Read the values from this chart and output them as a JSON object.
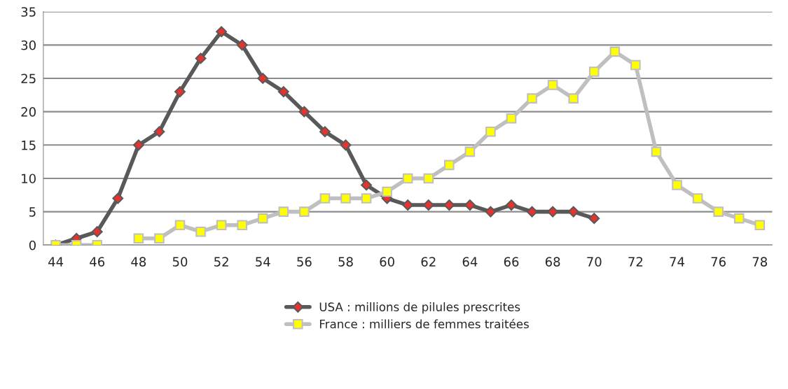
{
  "chart_data": {
    "type": "line",
    "categories": [
      "44",
      null,
      "46",
      null,
      "48",
      null,
      "50",
      null,
      "52",
      null,
      "54",
      null,
      "56",
      null,
      "58",
      null,
      "60",
      null,
      "62",
      null,
      "64",
      null,
      "66",
      null,
      "68",
      null,
      "70",
      null,
      "72",
      null,
      "74",
      null,
      "76",
      null,
      "78"
    ],
    "series": [
      {
        "name": "USA : millions de pilules prescrites",
        "color": "#595959",
        "colors": [
          "#e8322d",
          "#e8322d",
          "#e8322d",
          "#e8322d",
          "#e8322d",
          "#e8322d",
          "#e8322d",
          "#e8322d",
          "#e8322d",
          "#e8322d",
          "#e8322d",
          "#e8322d",
          "#e8322d",
          "#e8322d",
          "#e8322d",
          "#e8322d",
          "#e8322d",
          "#e8322d",
          "#e8322d",
          "#e8322d",
          "#e8322d",
          "#e8322d",
          "#e8322d",
          "#e8322d",
          "#e8322d",
          "#e8322d",
          "#e8322d",
          "#e8322d",
          "#e8322d",
          "#e8322d",
          "#e8322d",
          "#e8322d",
          "#e8322d",
          "#e8322d",
          "#e8322d"
        ],
        "marker": "diamond",
        "values": [
          0,
          1,
          2,
          7,
          15,
          17,
          23,
          28,
          32,
          30,
          25,
          23,
          20,
          17,
          15,
          9,
          7,
          6,
          6,
          6,
          6,
          5,
          6,
          5,
          5,
          5,
          4,
          null,
          null,
          null,
          null,
          null,
          null,
          null,
          null
        ]
      },
      {
        "name": "France : milliers de femmes traitées",
        "color": "#bfbfbf",
        "colors": [
          "#ffff00",
          "#ffff00",
          "#ffff00",
          "#ffff00",
          "#ffff00",
          "#ffff00",
          "#ffff00",
          "#ffff00",
          "#ffff00",
          "#ffff00",
          "#ffff00",
          "#ffff00",
          "#ffff00",
          "#ffff00",
          "#ffff00",
          "#ffff00",
          "#ffff00",
          "#ffff00",
          "#ffff00",
          "#ffff00",
          "#ffff00",
          "#ffff00",
          "#ffff00",
          "#ffff00",
          "#ffff00",
          "#ffff00",
          "#ffff00",
          "#ffff00",
          "#ffff00",
          "#ffff00",
          "#ffff00",
          "#ffff00",
          "#ffff00",
          "#ffff00",
          "#ffff00"
        ],
        "marker": "square",
        "values": [
          0,
          0,
          0,
          null,
          1,
          1,
          3,
          2,
          3,
          3,
          4,
          5,
          5,
          7,
          7,
          7,
          8,
          10,
          10,
          12,
          14,
          17,
          19,
          22,
          24,
          22,
          26,
          29,
          27,
          14,
          9,
          7,
          5,
          4,
          3
        ]
      }
    ],
    "ylim": [
      0,
      35
    ],
    "yticks": [
      0,
      5,
      10,
      15,
      20,
      25,
      30,
      35
    ],
    "grid": "y",
    "legend": "bottom",
    "line_style": "solid"
  }
}
